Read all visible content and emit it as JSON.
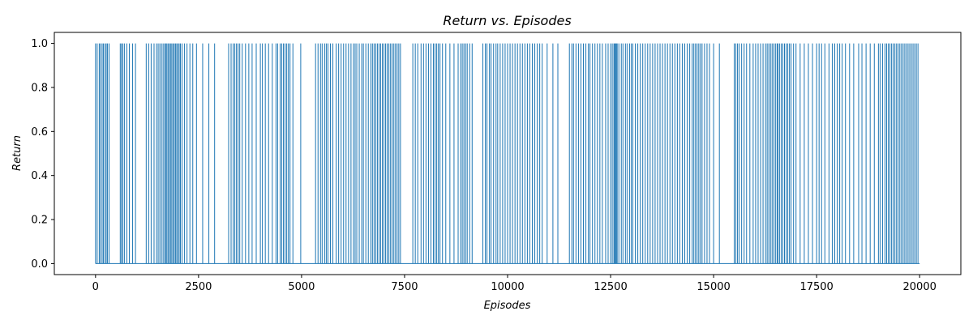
{
  "chart_data": {
    "type": "line",
    "title": "Return vs. Episodes",
    "xlabel": "Episodes",
    "ylabel": "Return",
    "xlim": [
      -1000,
      21000
    ],
    "ylim": [
      -0.05,
      1.05
    ],
    "xticks": [
      0,
      2500,
      5000,
      7500,
      10000,
      12500,
      15000,
      17500,
      20000
    ],
    "xtick_labels": [
      "0",
      "2500",
      "5000",
      "7500",
      "10000",
      "12500",
      "15000",
      "17500",
      "20000"
    ],
    "yticks": [
      0.0,
      0.2,
      0.4,
      0.6,
      0.8,
      1.0
    ],
    "ytick_labels": [
      "0.0",
      "0.2",
      "0.4",
      "0.6",
      "0.8",
      "1.0"
    ],
    "grid": false,
    "legend": false,
    "series_color": "#1f77b4",
    "series": [
      {
        "x_range": [
          0,
          20000
        ],
        "baseline_value": 0.0,
        "spike_value": 1.0,
        "spike_episodes": [
          0,
          40,
          90,
          120,
          160,
          190,
          230,
          260,
          290,
          330,
          600,
          630,
          660,
          700,
          760,
          820,
          900,
          970,
          1230,
          1290,
          1350,
          1420,
          1480,
          1520,
          1560,
          1600,
          1640,
          1680,
          1700,
          1730,
          1760,
          1790,
          1820,
          1850,
          1880,
          1910,
          1940,
          1970,
          2000,
          2030,
          2060,
          2100,
          2160,
          2220,
          2290,
          2360,
          2450,
          2600,
          2750,
          2890,
          3230,
          3290,
          3340,
          3380,
          3420,
          3460,
          3500,
          3560,
          3640,
          3720,
          3800,
          3900,
          4000,
          4050,
          4120,
          4200,
          4290,
          4380,
          4420,
          4480,
          4520,
          4560,
          4600,
          4640,
          4680,
          4720,
          4790,
          4980,
          5340,
          5400,
          5460,
          5500,
          5560,
          5600,
          5640,
          5700,
          5760,
          5840,
          5900,
          5960,
          6020,
          6080,
          6140,
          6200,
          6260,
          6300,
          6340,
          6400,
          6460,
          6500,
          6560,
          6620,
          6680,
          6720,
          6760,
          6800,
          6840,
          6880,
          6920,
          6960,
          7000,
          7040,
          7080,
          7120,
          7160,
          7200,
          7240,
          7280,
          7320,
          7360,
          7400,
          7700,
          7760,
          7820,
          7900,
          7960,
          8020,
          8080,
          8140,
          8200,
          8240,
          8280,
          8320,
          8360,
          8420,
          8500,
          8600,
          8700,
          8800,
          8860,
          8900,
          8940,
          8980,
          9020,
          9080,
          9140,
          9400,
          9460,
          9500,
          9560,
          9600,
          9660,
          9720,
          9760,
          9820,
          9880,
          9940,
          10000,
          10060,
          10120,
          10180,
          10240,
          10300,
          10360,
          10420,
          10480,
          10540,
          10600,
          10660,
          10720,
          10780,
          10840,
          10960,
          11100,
          11220,
          11500,
          11560,
          11600,
          11660,
          11720,
          11780,
          11840,
          11900,
          11960,
          12000,
          12060,
          12120,
          12180,
          12240,
          12300,
          12380,
          12440,
          12500,
          12540,
          12580,
          12600,
          12620,
          12640,
          12660,
          12700,
          12760,
          12800,
          12860,
          12900,
          12960,
          13000,
          13040,
          13100,
          13160,
          13220,
          13280,
          13340,
          13400,
          13460,
          13520,
          13580,
          13640,
          13700,
          13760,
          13820,
          13880,
          13940,
          14000,
          14060,
          14120,
          14180,
          14240,
          14300,
          14360,
          14420,
          14480,
          14520,
          14560,
          14600,
          14640,
          14680,
          14720,
          14780,
          14840,
          14900,
          15000,
          15140,
          15500,
          15540,
          15580,
          15620,
          15680,
          15740,
          15800,
          15880,
          15960,
          16020,
          16080,
          16140,
          16200,
          16260,
          16300,
          16340,
          16380,
          16420,
          16460,
          16500,
          16540,
          16560,
          16600,
          16640,
          16680,
          16720,
          16760,
          16800,
          16840,
          16880,
          16940,
          17000,
          17100,
          17200,
          17300,
          17400,
          17500,
          17560,
          17620,
          17700,
          17800,
          17880,
          17940,
          18000,
          18060,
          18120,
          18200,
          18300,
          18400,
          18520,
          18600,
          18700,
          18800,
          18900,
          19000,
          19040,
          19100,
          19160,
          19200,
          19240,
          19280,
          19320,
          19360,
          19400,
          19440,
          19480,
          19520,
          19560,
          19600,
          19640,
          19680,
          19720,
          19760,
          19800,
          19840,
          19880,
          19920,
          19960
        ]
      }
    ]
  }
}
